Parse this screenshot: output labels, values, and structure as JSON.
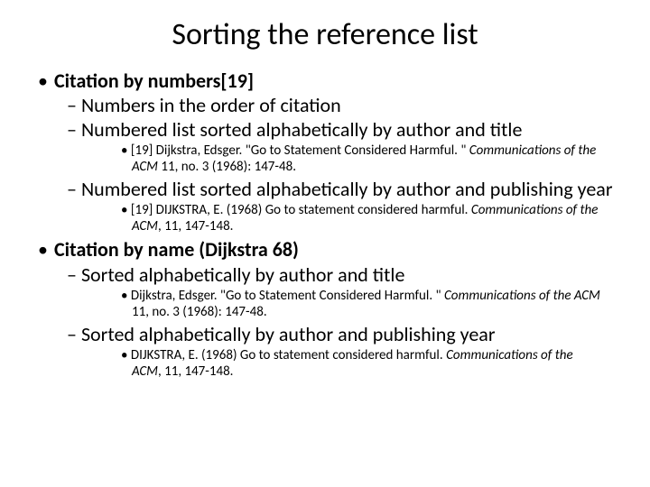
{
  "title": "Sorting the reference list",
  "b1": {
    "heading": "Citation by numbers[19]",
    "s1": "Numbers in the order of citation",
    "s2": "Numbered list sorted alphabetically by author and title",
    "s2ex_a": "[19] Dijkstra, Edsger. \"Go to Statement Considered Harmful. \"   ",
    "s2ex_b": "Communications of the ACM",
    "s2ex_c": " 11, no. 3 (1968): 147-48.",
    "s3": "Numbered list sorted alphabetically by author and publishing year",
    "s3ex_a": "[19] DIJKSTRA, E. (1968) Go to statement considered harmful.  ",
    "s3ex_b": "Communications of the ACM",
    "s3ex_c": ", 11, 147-148."
  },
  "b2": {
    "heading": "Citation by name (Dijkstra 68)",
    "s1": "Sorted alphabetically by author and title",
    "s1ex_a": "Dijkstra, Edsger. \"Go to Statement Considered Harmful. \"  ",
    "s1ex_b": "Communications of the ACM",
    "s1ex_c": " 11, no. 3 (1968): 147-48.",
    "s2": "Sorted alphabetically by author and publishing year",
    "s2ex_a": "DIJKSTRA, E. (1968) Go to statement considered harmful.  ",
    "s2ex_b": "Communications of the ACM",
    "s2ex_c": ", 11, 147-148."
  },
  "styling": {
    "title_fontsize": 34,
    "lvl1_fontsize": 22,
    "lvl2_fontsize": 22,
    "lvl3_fontsize": 15,
    "text_color": "#000000",
    "background_color": "#ffffff",
    "font_family": "Calibri"
  }
}
